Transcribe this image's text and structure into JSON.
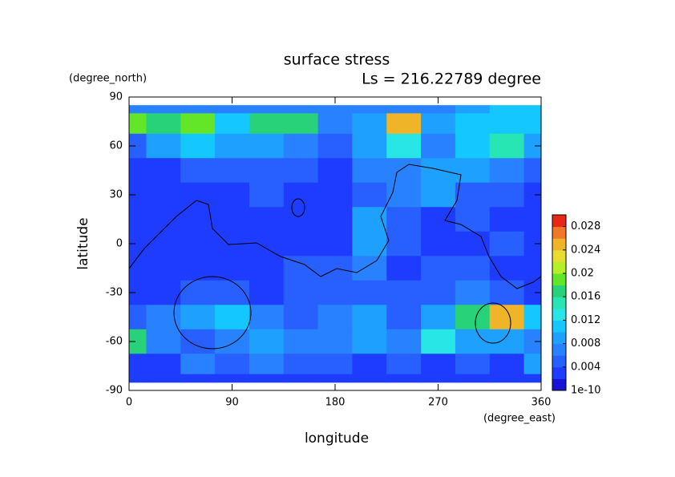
{
  "chart_data": {
    "type": "contour",
    "title": "surface stress",
    "subtitle": "Ls = 216.22789 degree",
    "x_label": "longitude",
    "x_unit": "(degree_east)",
    "y_label": "latitude",
    "y_unit": "(degree_north)",
    "x": [
      0,
      30,
      60,
      90,
      120,
      150,
      180,
      210,
      240,
      270,
      300,
      330,
      360
    ],
    "y": [
      85,
      75,
      60,
      45,
      30,
      15,
      0,
      -15,
      -30,
      -45,
      -60,
      -75,
      -85
    ],
    "z": [
      [
        0.006,
        0.006,
        0.007,
        0.006,
        0.006,
        0.007,
        0.006,
        0.006,
        0.006,
        0.007,
        0.008,
        0.01,
        0.011
      ],
      [
        0.018,
        0.016,
        0.018,
        0.01,
        0.016,
        0.016,
        0.006,
        0.008,
        0.024,
        0.009,
        0.01,
        0.01,
        0.01
      ],
      [
        0.004,
        0.008,
        0.01,
        0.008,
        0.008,
        0.006,
        0.005,
        0.008,
        0.012,
        0.006,
        0.01,
        0.014,
        0.008
      ],
      [
        0.003,
        0.003,
        0.004,
        0.004,
        0.004,
        0.004,
        0.003,
        0.006,
        0.006,
        0.008,
        0.008,
        0.006,
        0.004
      ],
      [
        0.002,
        0.002,
        0.003,
        0.002,
        0.004,
        0.002,
        0.002,
        0.005,
        0.006,
        0.008,
        0.004,
        0.004,
        0.003
      ],
      [
        0.002,
        0.002,
        0.002,
        0.002,
        0.002,
        0.002,
        0.002,
        0.008,
        0.004,
        0.003,
        0.004,
        0.003,
        0.002
      ],
      [
        0.002,
        0.002,
        0.002,
        0.002,
        0.002,
        0.002,
        0.003,
        0.008,
        0.004,
        0.003,
        0.003,
        0.004,
        0.002
      ],
      [
        0.003,
        0.002,
        0.002,
        0.003,
        0.003,
        0.004,
        0.004,
        0.006,
        0.003,
        0.004,
        0.004,
        0.003,
        0.002
      ],
      [
        0.003,
        0.003,
        0.004,
        0.004,
        0.003,
        0.004,
        0.005,
        0.004,
        0.004,
        0.004,
        0.006,
        0.005,
        0.003
      ],
      [
        0.004,
        0.006,
        0.008,
        0.01,
        0.006,
        0.004,
        0.006,
        0.008,
        0.004,
        0.008,
        0.016,
        0.024,
        0.01
      ],
      [
        0.016,
        0.006,
        0.004,
        0.006,
        0.008,
        0.006,
        0.006,
        0.008,
        0.006,
        0.012,
        0.008,
        0.008,
        0.006
      ],
      [
        0.002,
        0.003,
        0.006,
        0.004,
        0.006,
        0.004,
        0.004,
        0.003,
        0.004,
        0.003,
        0.004,
        0.002,
        0.008
      ],
      [
        0.002,
        0.002,
        0.002,
        0.002,
        0.002,
        0.002,
        0.002,
        0.002,
        0.002,
        0.002,
        0.002,
        0.002,
        0.002
      ]
    ],
    "xlim": [
      0,
      360
    ],
    "xticks": [
      0,
      90,
      180,
      270,
      360
    ],
    "ylim": [
      -90,
      90
    ],
    "yticks": [
      -90,
      -60,
      -30,
      0,
      30,
      60,
      90
    ],
    "clim": [
      0,
      0.03
    ],
    "cticks": [
      1e-10,
      0.004,
      0.008,
      0.012,
      0.016,
      0.02,
      0.024,
      0.028
    ],
    "colors": [
      "#1414d2",
      "#1e3cff",
      "#2860ff",
      "#2882ff",
      "#1ea0ff",
      "#14c8ff",
      "#28e6e6",
      "#28e6b4",
      "#28d278",
      "#64e628",
      "#b4f028",
      "#e6dc32",
      "#f0b428",
      "#f07828",
      "#e62814"
    ]
  }
}
